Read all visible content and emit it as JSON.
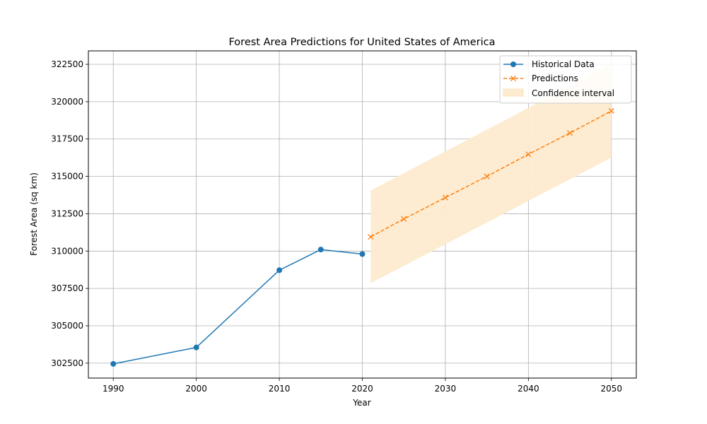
{
  "chart_data": {
    "type": "line",
    "title": "Forest Area Predictions for United States of America",
    "xlabel": "Year",
    "ylabel": "Forest Area (sq km)",
    "xlim": [
      1987,
      2053
    ],
    "ylim": [
      301500,
      323400
    ],
    "grid": true,
    "legend_position": "top-right",
    "x_ticks": [
      1990,
      2000,
      2010,
      2020,
      2030,
      2040,
      2050
    ],
    "y_ticks": [
      302500,
      305000,
      307500,
      310000,
      312500,
      315000,
      317500,
      320000,
      322500
    ],
    "series": [
      {
        "name": "Historical Data",
        "style": "solid",
        "marker": "circle",
        "color": "#1f77b4",
        "x": [
          1990,
          2000,
          2010,
          2015,
          2020
        ],
        "y": [
          302450,
          303550,
          308720,
          310100,
          309800
        ]
      },
      {
        "name": "Predictions",
        "style": "dashed",
        "marker": "x",
        "color": "#ff7f0e",
        "x": [
          2021,
          2025,
          2030,
          2035,
          2040,
          2045,
          2050
        ],
        "y": [
          310950,
          312150,
          313580,
          315000,
          316480,
          317900,
          319380
        ]
      }
    ],
    "confidence_interval": {
      "name": "Confidence interval",
      "color": "#fdebd0",
      "x": [
        2021,
        2050
      ],
      "lower": [
        307850,
        316250
      ],
      "upper": [
        314050,
        322500
      ]
    }
  }
}
